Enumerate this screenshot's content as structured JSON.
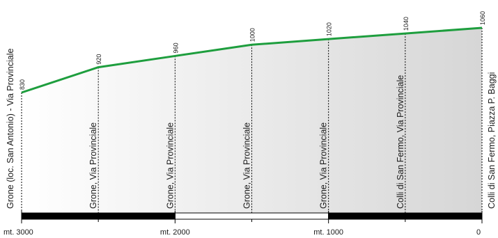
{
  "chart_data": {
    "type": "area",
    "x_axis": {
      "direction": "descending-left-to-right",
      "range": [
        3000,
        0
      ],
      "ticks": [
        {
          "value": 3000,
          "label": "mt. 3000"
        },
        {
          "value": 2000,
          "label": "mt. 2000"
        },
        {
          "value": 1000,
          "label": "mt. 1000"
        },
        {
          "value": 0,
          "label": "0"
        }
      ],
      "minor_tick_values": [
        2500,
        1500,
        500
      ],
      "scale_bar_segments": [
        {
          "from": 3000,
          "to": 2000,
          "fill": "#000000"
        },
        {
          "from": 2000,
          "to": 1000,
          "fill": "#ffffff"
        },
        {
          "from": 1000,
          "to": 0,
          "fill": "#000000"
        }
      ]
    },
    "y_range": [
      830,
      1060
    ],
    "points": [
      {
        "x": 3000,
        "y": 830,
        "label": "830",
        "place": "Grone (loc. San Antonio) - Via Provinciale"
      },
      {
        "x": 2500,
        "y": 920,
        "label": "920",
        "place": "Grone, Via Provinciale"
      },
      {
        "x": 2000,
        "y": 960,
        "label": "960",
        "place": "Grone, Via Provinciale"
      },
      {
        "x": 1500,
        "y": 1000,
        "label": "1000",
        "place": "Grone, Via Provinciale"
      },
      {
        "x": 1000,
        "y": 1020,
        "label": "1020",
        "place": "Grone, Via Provinciale"
      },
      {
        "x": 500,
        "y": 1040,
        "label": "1040",
        "place": "Colli di San Fermo, Via Provinciale"
      },
      {
        "x": 0,
        "y": 1060,
        "label": "1060",
        "place": "Colli di San Fermo, Piazza P. Baggi"
      }
    ],
    "colors": {
      "line": "#1e9e3e",
      "fill_light": "#ffffff",
      "fill_dark": "#d6d6d6",
      "axis": "#000000"
    }
  }
}
